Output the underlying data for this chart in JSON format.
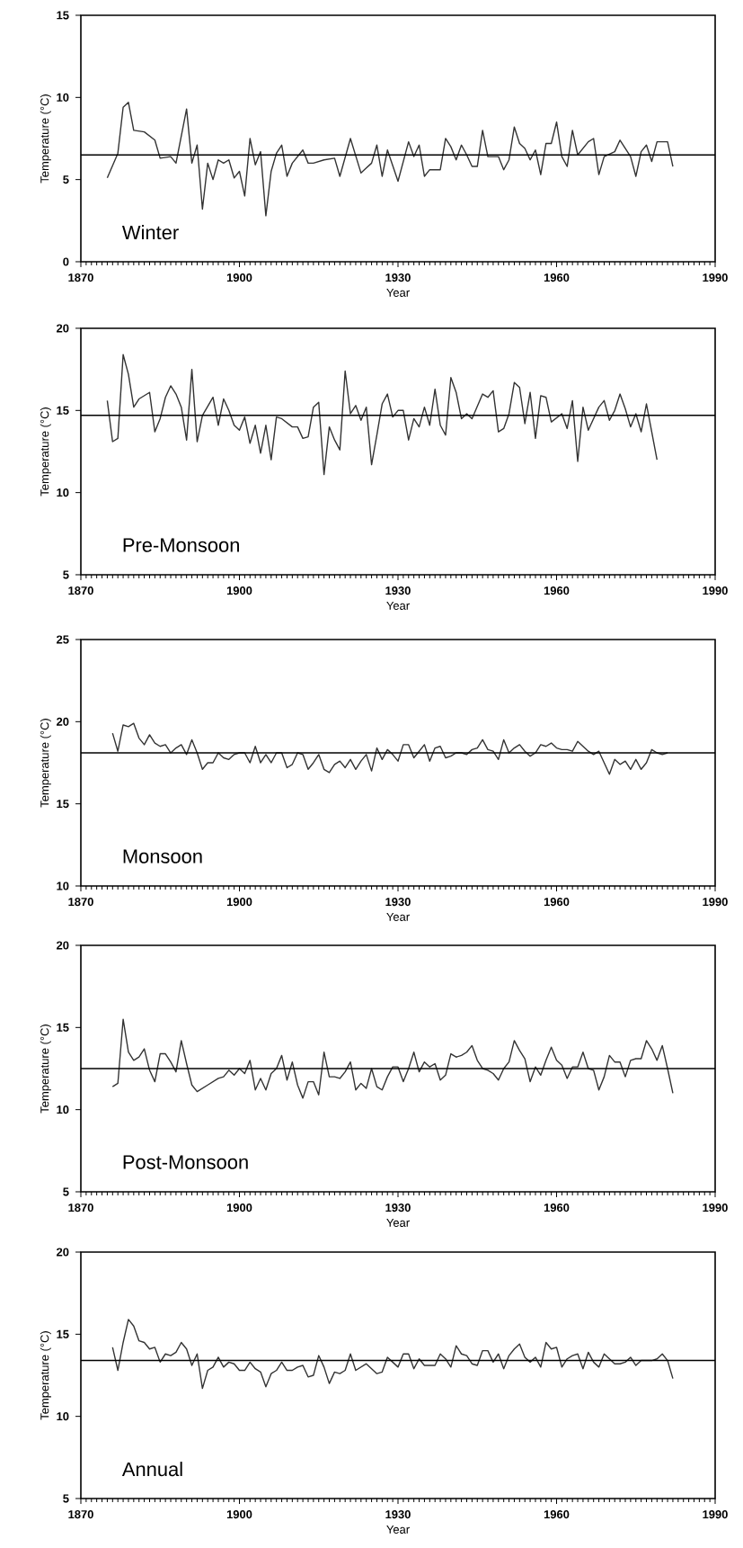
{
  "chart_data": [
    {
      "type": "line",
      "xlabel": "Year",
      "ylabel": "Temperature (°C)",
      "annotations": [
        "Winter"
      ],
      "xlim": [
        1870,
        1990
      ],
      "xticks": [
        1870,
        1900,
        1930,
        1960,
        1990
      ],
      "ylim": [
        0,
        15
      ],
      "yticks": [
        0,
        5,
        10,
        15
      ],
      "ref_lines": [
        {
          "axis": "y",
          "value": 6.5
        }
      ],
      "series": [
        {
          "color": "#333333",
          "x": [
            1875,
            1877,
            1878,
            1879,
            1880,
            1882,
            1884,
            1885,
            1887,
            1888,
            1890,
            1891,
            1892,
            1893,
            1894,
            1895,
            1896,
            1897,
            1898,
            1899,
            1900,
            1901,
            1902,
            1903,
            1904,
            1905,
            1906,
            1907,
            1908,
            1909,
            1910,
            1912,
            1913,
            1914,
            1916,
            1918,
            1919,
            1921,
            1923,
            1924,
            1925,
            1926,
            1927,
            1928,
            1930,
            1932,
            1933,
            1934,
            1935,
            1936,
            1938,
            1939,
            1940,
            1941,
            1942,
            1943,
            1944,
            1945,
            1946,
            1947,
            1949,
            1950,
            1951,
            1952,
            1953,
            1954,
            1955,
            1956,
            1957,
            1958,
            1959,
            1960,
            1961,
            1962,
            1963,
            1964,
            1966,
            1967,
            1968,
            1969,
            1971,
            1972,
            1974,
            1975,
            1976,
            1977,
            1978,
            1979,
            1981,
            1982
          ],
          "values": [
            5.1,
            6.6,
            9.4,
            9.7,
            8.0,
            7.9,
            7.4,
            6.3,
            6.4,
            6.0,
            9.3,
            6.0,
            7.1,
            3.2,
            6.0,
            5.0,
            6.2,
            6.0,
            6.2,
            5.1,
            5.5,
            4.0,
            7.5,
            5.9,
            6.7,
            2.8,
            5.5,
            6.6,
            7.1,
            5.2,
            6.0,
            6.8,
            6.0,
            6.0,
            6.2,
            6.3,
            5.2,
            7.5,
            5.4,
            5.7,
            6.0,
            7.1,
            5.2,
            6.8,
            4.9,
            7.3,
            6.4,
            7.1,
            5.2,
            5.6,
            5.6,
            7.5,
            7.0,
            6.2,
            7.1,
            6.5,
            5.8,
            5.8,
            8.0,
            6.4,
            6.4,
            5.6,
            6.2,
            8.2,
            7.2,
            6.9,
            6.2,
            6.8,
            5.3,
            7.2,
            7.2,
            8.5,
            6.4,
            5.8,
            8.0,
            6.5,
            7.3,
            7.5,
            5.3,
            6.4,
            6.7,
            7.4,
            6.4,
            5.2,
            6.7,
            7.1,
            6.1,
            7.3,
            7.3,
            5.8
          ]
        }
      ]
    },
    {
      "type": "line",
      "xlabel": "Year",
      "ylabel": "Temperature (°C)",
      "annotations": [
        "Pre-Monsoon"
      ],
      "xlim": [
        1870,
        1990
      ],
      "xticks": [
        1870,
        1900,
        1930,
        1960,
        1990
      ],
      "ylim": [
        5,
        20
      ],
      "yticks": [
        5,
        10,
        15,
        20
      ],
      "ref_lines": [
        {
          "axis": "y",
          "value": 14.7
        }
      ],
      "series": [
        {
          "color": "#333333",
          "x": [
            1875,
            1876,
            1877,
            1878,
            1879,
            1880,
            1881,
            1883,
            1884,
            1885,
            1886,
            1887,
            1888,
            1889,
            1890,
            1891,
            1892,
            1893,
            1895,
            1896,
            1897,
            1898,
            1899,
            1900,
            1901,
            1902,
            1903,
            1904,
            1905,
            1906,
            1907,
            1908,
            1910,
            1911,
            1912,
            1913,
            1914,
            1915,
            1916,
            1917,
            1918,
            1919,
            1920,
            1921,
            1922,
            1923,
            1924,
            1925,
            1926,
            1927,
            1928,
            1929,
            1930,
            1931,
            1932,
            1933,
            1934,
            1935,
            1936,
            1937,
            1938,
            1939,
            1940,
            1941,
            1942,
            1943,
            1944,
            1946,
            1947,
            1948,
            1949,
            1950,
            1951,
            1952,
            1953,
            1954,
            1955,
            1956,
            1957,
            1958,
            1959,
            1961,
            1962,
            1963,
            1964,
            1965,
            1966,
            1968,
            1969,
            1970,
            1971,
            1972,
            1973,
            1974,
            1975,
            1976,
            1977,
            1979
          ],
          "values": [
            15.6,
            13.1,
            13.3,
            18.4,
            17.2,
            15.2,
            15.7,
            16.1,
            13.7,
            14.5,
            15.8,
            16.5,
            16.0,
            15.2,
            13.2,
            17.5,
            13.1,
            14.7,
            15.8,
            14.1,
            15.7,
            15.0,
            14.1,
            13.8,
            14.6,
            13.0,
            14.1,
            12.4,
            14.1,
            12.0,
            14.6,
            14.5,
            14.0,
            14.0,
            13.3,
            13.4,
            15.2,
            15.5,
            11.1,
            14.0,
            13.2,
            12.6,
            17.4,
            14.8,
            15.3,
            14.4,
            15.2,
            11.7,
            13.5,
            15.4,
            16.0,
            14.6,
            15.0,
            15.0,
            13.2,
            14.5,
            14.0,
            15.2,
            14.1,
            16.3,
            14.1,
            13.5,
            17.0,
            16.1,
            14.5,
            14.8,
            14.5,
            16.0,
            15.8,
            16.2,
            13.7,
            13.9,
            14.8,
            16.7,
            16.4,
            14.2,
            16.1,
            13.3,
            15.9,
            15.8,
            14.3,
            14.8,
            13.9,
            15.6,
            11.9,
            15.2,
            13.8,
            15.2,
            15.6,
            14.4,
            15.0,
            16.0,
            15.1,
            14.0,
            14.8,
            13.7,
            15.4,
            12.0
          ]
        }
      ]
    },
    {
      "type": "line",
      "xlabel": "Year",
      "ylabel": "Temperature (°C)",
      "annotations": [
        "Monsoon"
      ],
      "xlim": [
        1870,
        1990
      ],
      "xticks": [
        1870,
        1900,
        1930,
        1960,
        1990
      ],
      "ylim": [
        10,
        25
      ],
      "yticks": [
        10,
        15,
        20,
        25
      ],
      "ref_lines": [
        {
          "axis": "y",
          "value": 18.1
        }
      ],
      "series": [
        {
          "color": "#333333",
          "x": [
            1876,
            1877,
            1878,
            1879,
            1880,
            1881,
            1882,
            1883,
            1884,
            1885,
            1886,
            1887,
            1888,
            1889,
            1890,
            1891,
            1892,
            1893,
            1894,
            1895,
            1896,
            1897,
            1898,
            1899,
            1900,
            1901,
            1902,
            1903,
            1904,
            1905,
            1906,
            1907,
            1908,
            1909,
            1910,
            1911,
            1912,
            1913,
            1914,
            1915,
            1916,
            1917,
            1918,
            1919,
            1920,
            1921,
            1922,
            1923,
            1924,
            1925,
            1926,
            1927,
            1928,
            1929,
            1930,
            1931,
            1932,
            1933,
            1934,
            1935,
            1936,
            1937,
            1938,
            1939,
            1940,
            1941,
            1942,
            1943,
            1944,
            1945,
            1946,
            1947,
            1948,
            1949,
            1950,
            1951,
            1952,
            1953,
            1954,
            1955,
            1956,
            1957,
            1958,
            1959,
            1960,
            1961,
            1962,
            1963,
            1964,
            1965,
            1966,
            1967,
            1968,
            1969,
            1970,
            1971,
            1972,
            1973,
            1974,
            1975,
            1976,
            1977,
            1978,
            1979,
            1980,
            1981
          ],
          "values": [
            19.3,
            18.2,
            19.8,
            19.7,
            19.9,
            19.0,
            18.6,
            19.2,
            18.7,
            18.5,
            18.6,
            18.1,
            18.4,
            18.6,
            18.0,
            18.9,
            18.1,
            17.1,
            17.5,
            17.5,
            18.1,
            17.8,
            17.7,
            18.0,
            18.1,
            18.1,
            17.5,
            18.5,
            17.5,
            18.0,
            17.5,
            18.1,
            18.1,
            17.2,
            17.4,
            18.1,
            18.0,
            17.1,
            17.5,
            18.0,
            17.1,
            16.9,
            17.4,
            17.6,
            17.2,
            17.7,
            17.1,
            17.6,
            18.0,
            17.0,
            18.4,
            17.7,
            18.3,
            18.0,
            17.6,
            18.6,
            18.6,
            17.8,
            18.2,
            18.6,
            17.6,
            18.4,
            18.5,
            17.8,
            17.9,
            18.1,
            18.1,
            18.0,
            18.3,
            18.4,
            18.9,
            18.3,
            18.2,
            17.7,
            18.9,
            18.1,
            18.4,
            18.6,
            18.2,
            17.9,
            18.1,
            18.6,
            18.5,
            18.7,
            18.4,
            18.3,
            18.3,
            18.2,
            18.8,
            18.5,
            18.2,
            18.0,
            18.2,
            17.5,
            16.8,
            17.7,
            17.4,
            17.6,
            17.1,
            17.7,
            17.1,
            17.5,
            18.3,
            18.1,
            18.0,
            18.1
          ]
        }
      ]
    },
    {
      "type": "line",
      "xlabel": "Year",
      "ylabel": "Temperature (°C)",
      "annotations": [
        "Post-Monsoon"
      ],
      "xlim": [
        1870,
        1990
      ],
      "xticks": [
        1870,
        1900,
        1930,
        1960,
        1990
      ],
      "ylim": [
        5,
        20
      ],
      "yticks": [
        5,
        10,
        15,
        20
      ],
      "ref_lines": [
        {
          "axis": "y",
          "value": 12.5
        }
      ],
      "series": [
        {
          "color": "#333333",
          "x": [
            1876,
            1877,
            1878,
            1879,
            1880,
            1881,
            1882,
            1883,
            1884,
            1885,
            1886,
            1887,
            1888,
            1889,
            1890,
            1891,
            1892,
            1894,
            1896,
            1897,
            1898,
            1899,
            1900,
            1901,
            1902,
            1903,
            1904,
            1905,
            1906,
            1907,
            1908,
            1909,
            1910,
            1911,
            1912,
            1913,
            1914,
            1915,
            1916,
            1917,
            1918,
            1919,
            1920,
            1921,
            1922,
            1923,
            1924,
            1925,
            1926,
            1927,
            1928,
            1929,
            1930,
            1931,
            1932,
            1933,
            1934,
            1935,
            1936,
            1937,
            1938,
            1939,
            1940,
            1941,
            1942,
            1943,
            1944,
            1945,
            1946,
            1947,
            1948,
            1949,
            1950,
            1951,
            1952,
            1953,
            1954,
            1955,
            1956,
            1957,
            1958,
            1959,
            1960,
            1961,
            1962,
            1963,
            1964,
            1965,
            1966,
            1967,
            1968,
            1969,
            1970,
            1971,
            1972,
            1973,
            1974,
            1975,
            1976,
            1977,
            1978,
            1979,
            1980,
            1981,
            1982
          ],
          "values": [
            11.4,
            11.6,
            15.5,
            13.5,
            13.0,
            13.2,
            13.7,
            12.4,
            11.7,
            13.4,
            13.4,
            12.9,
            12.3,
            14.2,
            12.8,
            11.5,
            11.1,
            11.5,
            11.9,
            12.0,
            12.4,
            12.1,
            12.5,
            12.2,
            13.0,
            11.2,
            11.9,
            11.2,
            12.2,
            12.5,
            13.3,
            11.8,
            12.9,
            11.5,
            10.7,
            11.7,
            11.7,
            10.9,
            13.5,
            12.0,
            12.0,
            11.9,
            12.3,
            12.9,
            11.2,
            11.6,
            11.3,
            12.5,
            11.4,
            11.2,
            12.0,
            12.6,
            12.6,
            11.7,
            12.5,
            13.5,
            12.3,
            12.9,
            12.6,
            12.8,
            11.8,
            12.1,
            13.4,
            13.2,
            13.3,
            13.5,
            13.9,
            13.0,
            12.5,
            12.4,
            12.2,
            11.8,
            12.5,
            12.9,
            14.2,
            13.6,
            13.1,
            11.7,
            12.6,
            12.1,
            13.0,
            13.8,
            13.0,
            12.7,
            11.9,
            12.6,
            12.6,
            13.5,
            12.5,
            12.4,
            11.2,
            12.0,
            13.3,
            12.9,
            12.9,
            12.0,
            13.0,
            13.1,
            13.1,
            14.2,
            13.7,
            13.0,
            13.9,
            12.5,
            11.0
          ]
        }
      ]
    },
    {
      "type": "line",
      "xlabel": "Year",
      "ylabel": "Temperature (°C)",
      "annotations": [
        "Annual"
      ],
      "xlim": [
        1870,
        1990
      ],
      "xticks": [
        1870,
        1900,
        1930,
        1960,
        1990
      ],
      "ylim": [
        5,
        20
      ],
      "yticks": [
        5,
        10,
        15,
        20
      ],
      "ref_lines": [
        {
          "axis": "y",
          "value": 13.4
        }
      ],
      "series": [
        {
          "color": "#333333",
          "x": [
            1876,
            1877,
            1878,
            1879,
            1880,
            1881,
            1882,
            1883,
            1884,
            1885,
            1886,
            1887,
            1888,
            1889,
            1890,
            1891,
            1892,
            1893,
            1894,
            1895,
            1896,
            1897,
            1898,
            1899,
            1900,
            1901,
            1902,
            1903,
            1904,
            1905,
            1906,
            1907,
            1908,
            1909,
            1910,
            1911,
            1912,
            1913,
            1914,
            1915,
            1916,
            1917,
            1918,
            1919,
            1920,
            1921,
            1922,
            1923,
            1924,
            1925,
            1926,
            1927,
            1928,
            1929,
            1930,
            1931,
            1932,
            1933,
            1934,
            1935,
            1936,
            1937,
            1938,
            1939,
            1940,
            1941,
            1942,
            1943,
            1944,
            1945,
            1946,
            1947,
            1948,
            1949,
            1950,
            1951,
            1952,
            1953,
            1954,
            1955,
            1956,
            1957,
            1958,
            1959,
            1960,
            1961,
            1962,
            1963,
            1964,
            1965,
            1966,
            1967,
            1968,
            1969,
            1970,
            1971,
            1972,
            1973,
            1974,
            1975,
            1976,
            1977,
            1978,
            1979,
            1980,
            1981,
            1982
          ],
          "values": [
            14.2,
            12.8,
            14.5,
            15.9,
            15.5,
            14.6,
            14.5,
            14.1,
            14.2,
            13.3,
            13.8,
            13.7,
            13.9,
            14.5,
            14.1,
            13.1,
            13.8,
            11.7,
            12.8,
            13.0,
            13.6,
            13.0,
            13.3,
            13.2,
            12.8,
            12.8,
            13.3,
            12.9,
            12.7,
            11.8,
            12.6,
            12.8,
            13.3,
            12.8,
            12.8,
            13.0,
            13.1,
            12.4,
            12.5,
            13.7,
            13.0,
            12.0,
            12.7,
            12.6,
            12.8,
            13.8,
            12.8,
            13.0,
            13.2,
            12.9,
            12.6,
            12.7,
            13.6,
            13.3,
            13.0,
            13.8,
            13.8,
            12.9,
            13.5,
            13.1,
            13.1,
            13.1,
            13.8,
            13.5,
            13.0,
            14.3,
            13.8,
            13.7,
            13.2,
            13.1,
            14.0,
            14.0,
            13.3,
            13.8,
            12.9,
            13.7,
            14.1,
            14.4,
            13.6,
            13.3,
            13.6,
            13.0,
            14.5,
            14.1,
            14.2,
            13.0,
            13.5,
            13.7,
            13.8,
            12.9,
            13.9,
            13.3,
            13.0,
            13.8,
            13.5,
            13.2,
            13.2,
            13.3,
            13.6,
            13.1,
            13.4,
            13.4,
            13.4,
            13.5,
            13.8,
            13.4,
            12.3
          ]
        }
      ]
    }
  ]
}
